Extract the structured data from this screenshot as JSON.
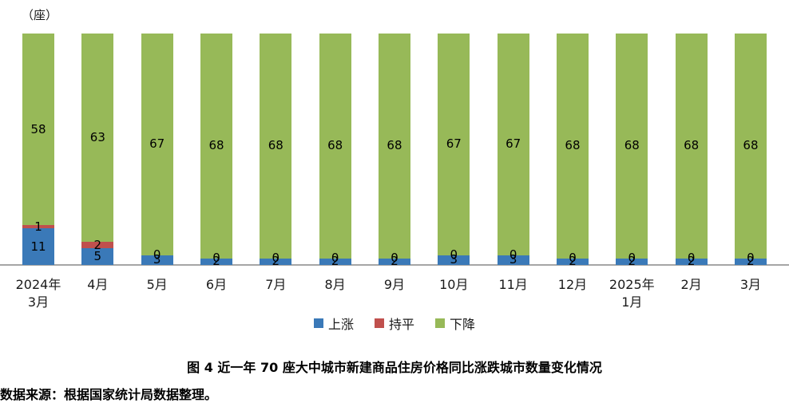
{
  "unit_label": "（座）",
  "title": "图 4  近一年 70 座大中城市新建商品住房价格同比涨跌城市数量变化情况",
  "source": "数据来源：根据国家统计局数据整理。",
  "colors": {
    "rise": "#3a79b8",
    "flat": "#c0504d",
    "fall": "#97b958",
    "axis": "#a6a6a6"
  },
  "chart_data": {
    "type": "bar",
    "stacked": true,
    "unit": "座",
    "total_per_bar": 70,
    "title": "图 4  近一年 70 座大中城市新建商品住房价格同比涨跌城市数量变化情况",
    "xlabel": "",
    "ylabel": "（座）",
    "ylim": [
      0,
      70
    ],
    "grid": false,
    "legend_position": "bottom",
    "categories": [
      [
        "2024年",
        "3月"
      ],
      [
        "4月"
      ],
      [
        "5月"
      ],
      [
        "6月"
      ],
      [
        "7月"
      ],
      [
        "8月"
      ],
      [
        "9月"
      ],
      [
        "10月"
      ],
      [
        "11月"
      ],
      [
        "12月"
      ],
      [
        "2025年",
        "1月"
      ],
      [
        "2月"
      ],
      [
        "3月"
      ]
    ],
    "series": [
      {
        "key": "rise",
        "name": "上涨",
        "color": "#3a79b8",
        "values": [
          11,
          5,
          3,
          2,
          2,
          2,
          2,
          3,
          3,
          2,
          2,
          2,
          2
        ]
      },
      {
        "key": "flat",
        "name": "持平",
        "color": "#c0504d",
        "values": [
          1,
          2,
          0,
          0,
          0,
          0,
          0,
          0,
          0,
          0,
          0,
          0,
          0
        ]
      },
      {
        "key": "fall",
        "name": "下降",
        "color": "#97b958",
        "values": [
          58,
          63,
          67,
          68,
          68,
          68,
          68,
          67,
          67,
          68,
          68,
          68,
          68
        ]
      }
    ]
  }
}
